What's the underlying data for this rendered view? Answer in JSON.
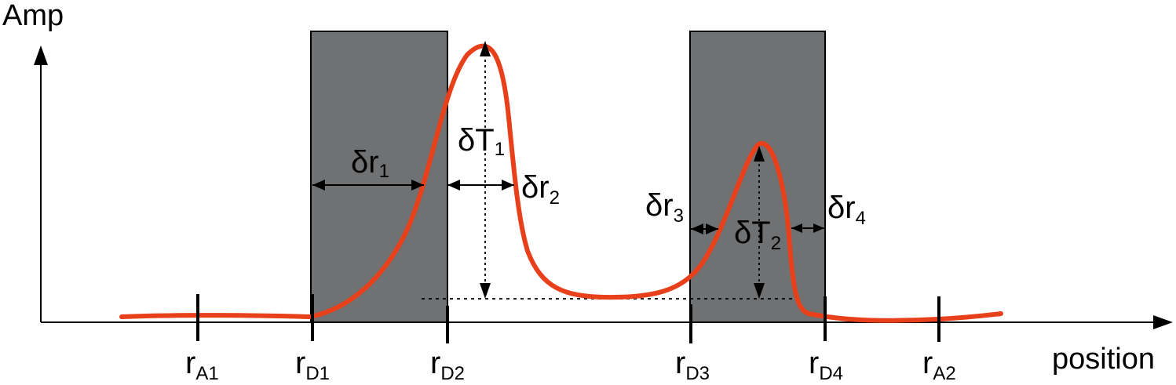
{
  "axes": {
    "y_label": "Amp",
    "x_label": "position"
  },
  "ticks": [
    {
      "main": "r",
      "sub": "A1"
    },
    {
      "main": "r",
      "sub": "D1"
    },
    {
      "main": "r",
      "sub": "D2"
    },
    {
      "main": "r",
      "sub": "D3"
    },
    {
      "main": "r",
      "sub": "D4"
    },
    {
      "main": "r",
      "sub": "A2"
    }
  ],
  "annotations": {
    "dr1": {
      "main": "δr",
      "sub": "1"
    },
    "dr2": {
      "main": "δr",
      "sub": "2"
    },
    "dr3": {
      "main": "δr",
      "sub": "3"
    },
    "dr4": {
      "main": "δr",
      "sub": "4"
    },
    "dT1": {
      "main": "δT",
      "sub": "1"
    },
    "dT2": {
      "main": "δT",
      "sub": "2"
    }
  },
  "colors": {
    "curve": "#e8401a",
    "shaded_region": "#707172",
    "axis": "#000000"
  }
}
